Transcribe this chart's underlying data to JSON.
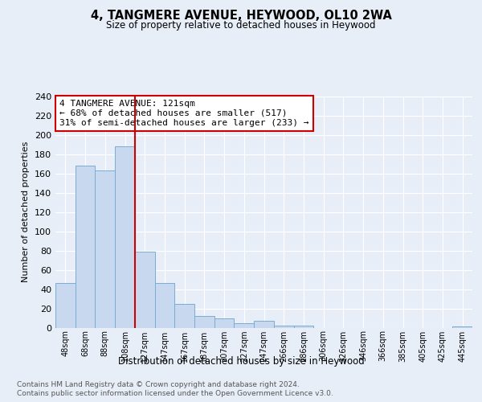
{
  "title": "4, TANGMERE AVENUE, HEYWOOD, OL10 2WA",
  "subtitle": "Size of property relative to detached houses in Heywood",
  "xlabel": "Distribution of detached houses by size in Heywood",
  "ylabel": "Number of detached properties",
  "bin_labels": [
    "48sqm",
    "68sqm",
    "88sqm",
    "108sqm",
    "127sqm",
    "147sqm",
    "167sqm",
    "187sqm",
    "207sqm",
    "227sqm",
    "247sqm",
    "266sqm",
    "286sqm",
    "306sqm",
    "326sqm",
    "346sqm",
    "366sqm",
    "385sqm",
    "405sqm",
    "425sqm",
    "445sqm"
  ],
  "bar_heights": [
    46,
    168,
    163,
    188,
    79,
    46,
    25,
    12,
    10,
    5,
    7,
    2,
    2,
    0,
    0,
    0,
    0,
    0,
    0,
    0,
    1
  ],
  "bar_color": "#c8d9ef",
  "bar_edgecolor": "#7aadd4",
  "vline_x_index": 3.5,
  "vline_color": "#cc0000",
  "annotation_text": "4 TANGMERE AVENUE: 121sqm\n← 68% of detached houses are smaller (517)\n31% of semi-detached houses are larger (233) →",
  "annotation_box_edgecolor": "#cc0000",
  "ylim": [
    0,
    240
  ],
  "yticks": [
    0,
    20,
    40,
    60,
    80,
    100,
    120,
    140,
    160,
    180,
    200,
    220,
    240
  ],
  "footnote1": "Contains HM Land Registry data © Crown copyright and database right 2024.",
  "footnote2": "Contains public sector information licensed under the Open Government Licence v3.0.",
  "bg_color": "#e8eef8",
  "plot_bg_color": "#e8eef8"
}
